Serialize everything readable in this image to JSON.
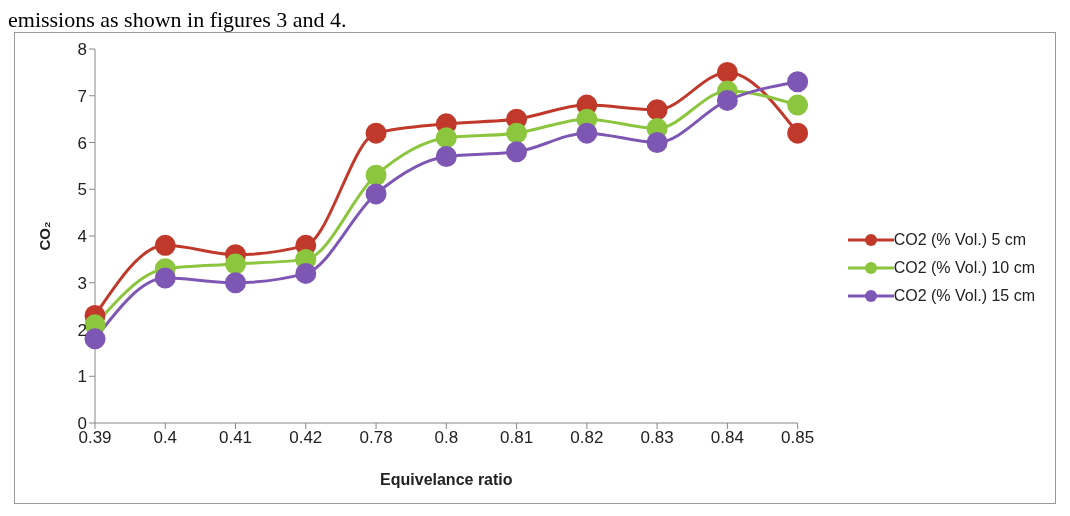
{
  "chart_data": {
    "type": "line",
    "xlabel": "Equivelance ratio",
    "ylabel": "CO₂",
    "annotations": [
      "emissions as shown in figures 3 and 4."
    ],
    "categories": [
      "0.39",
      "0.4",
      "0.41",
      "0.42",
      "0.78",
      "0.8",
      "0.81",
      "0.82",
      "0.83",
      "0.84",
      "0.85"
    ],
    "series": [
      {
        "name": "CO2 (% Vol.) 5 cm",
        "color": "#c0392b",
        "values": [
          2.3,
          3.8,
          3.6,
          3.8,
          6.2,
          6.4,
          6.5,
          6.8,
          6.7,
          7.5,
          6.2
        ]
      },
      {
        "name": "CO2 (% Vol.) 10 cm",
        "color": "#8cc63f",
        "values": [
          2.1,
          3.3,
          3.4,
          3.5,
          5.3,
          6.1,
          6.2,
          6.5,
          6.3,
          7.1,
          6.8
        ]
      },
      {
        "name": "CO2 (% Vol.) 15 cm",
        "color": "#7e57b4",
        "values": [
          1.8,
          3.1,
          3.0,
          3.2,
          4.9,
          5.7,
          5.8,
          6.2,
          6.0,
          6.9,
          7.3
        ]
      }
    ],
    "ylim": [
      0,
      8
    ],
    "yticks": [
      0,
      1,
      2,
      3,
      4,
      5,
      6,
      7,
      8
    ],
    "grid": false,
    "legend": "right",
    "marker": "circle",
    "line_style": "solid"
  }
}
